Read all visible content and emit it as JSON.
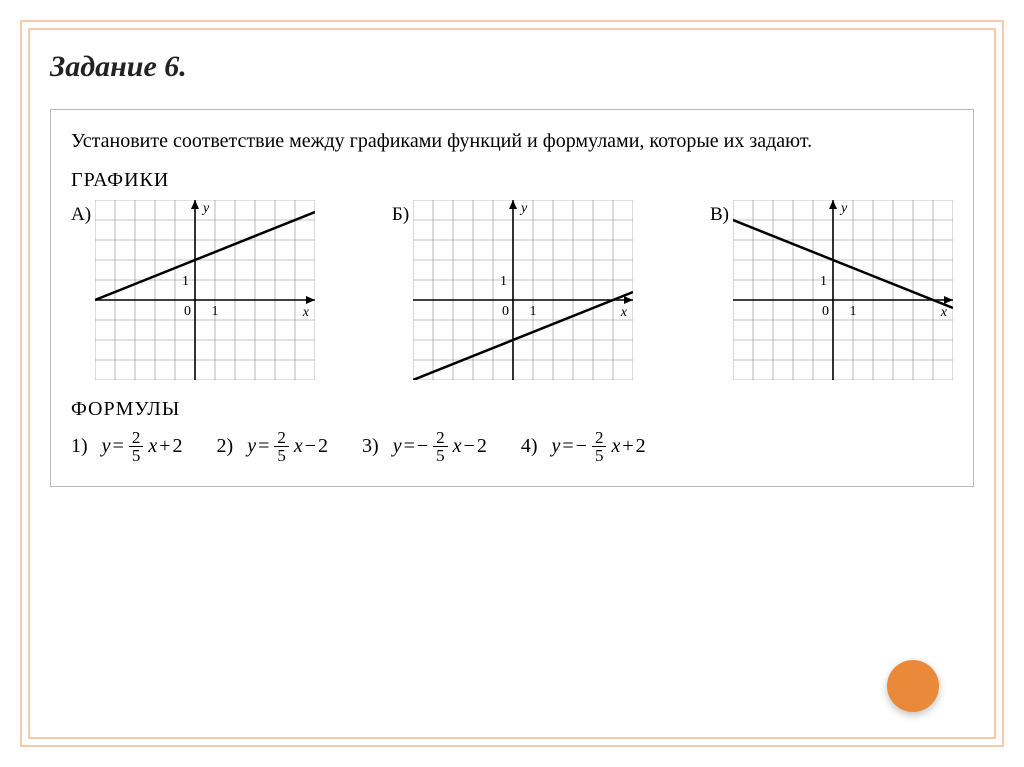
{
  "title": "Задание 6.",
  "instruction": "Установите соответствие между графиками функций и формулами, которые их задают.",
  "graphs_label": "ГРАФИКИ",
  "formulas_label": "ФОРМУЛЫ",
  "grid": {
    "cell": 20,
    "xmin": -5,
    "xmax": 6,
    "ymin": -4,
    "ymax": 5,
    "axis_color": "#000000",
    "grid_color": "#888888",
    "line_color": "#000000",
    "line_width": 2.5,
    "label_font": 14
  },
  "graphs": [
    {
      "label": "А)",
      "slope": 0.4,
      "intercept": 2
    },
    {
      "label": "Б)",
      "slope": 0.4,
      "intercept": -2
    },
    {
      "label": "В)",
      "slope": -0.4,
      "intercept": 2
    }
  ],
  "formulas": [
    {
      "num": "1)",
      "sign1": "",
      "sign2": "+",
      "const": "2"
    },
    {
      "num": "2)",
      "sign1": "",
      "sign2": "−",
      "const": "2"
    },
    {
      "num": "3)",
      "sign1": "−",
      "sign2": "−",
      "const": "2"
    },
    {
      "num": "4)",
      "sign1": "−",
      "sign2": "+",
      "const": "2"
    }
  ],
  "frac": {
    "numer": "2",
    "denom": "5"
  },
  "colors": {
    "frame": "#f7c9a8",
    "dot": "#eb893b",
    "text": "#000000"
  }
}
